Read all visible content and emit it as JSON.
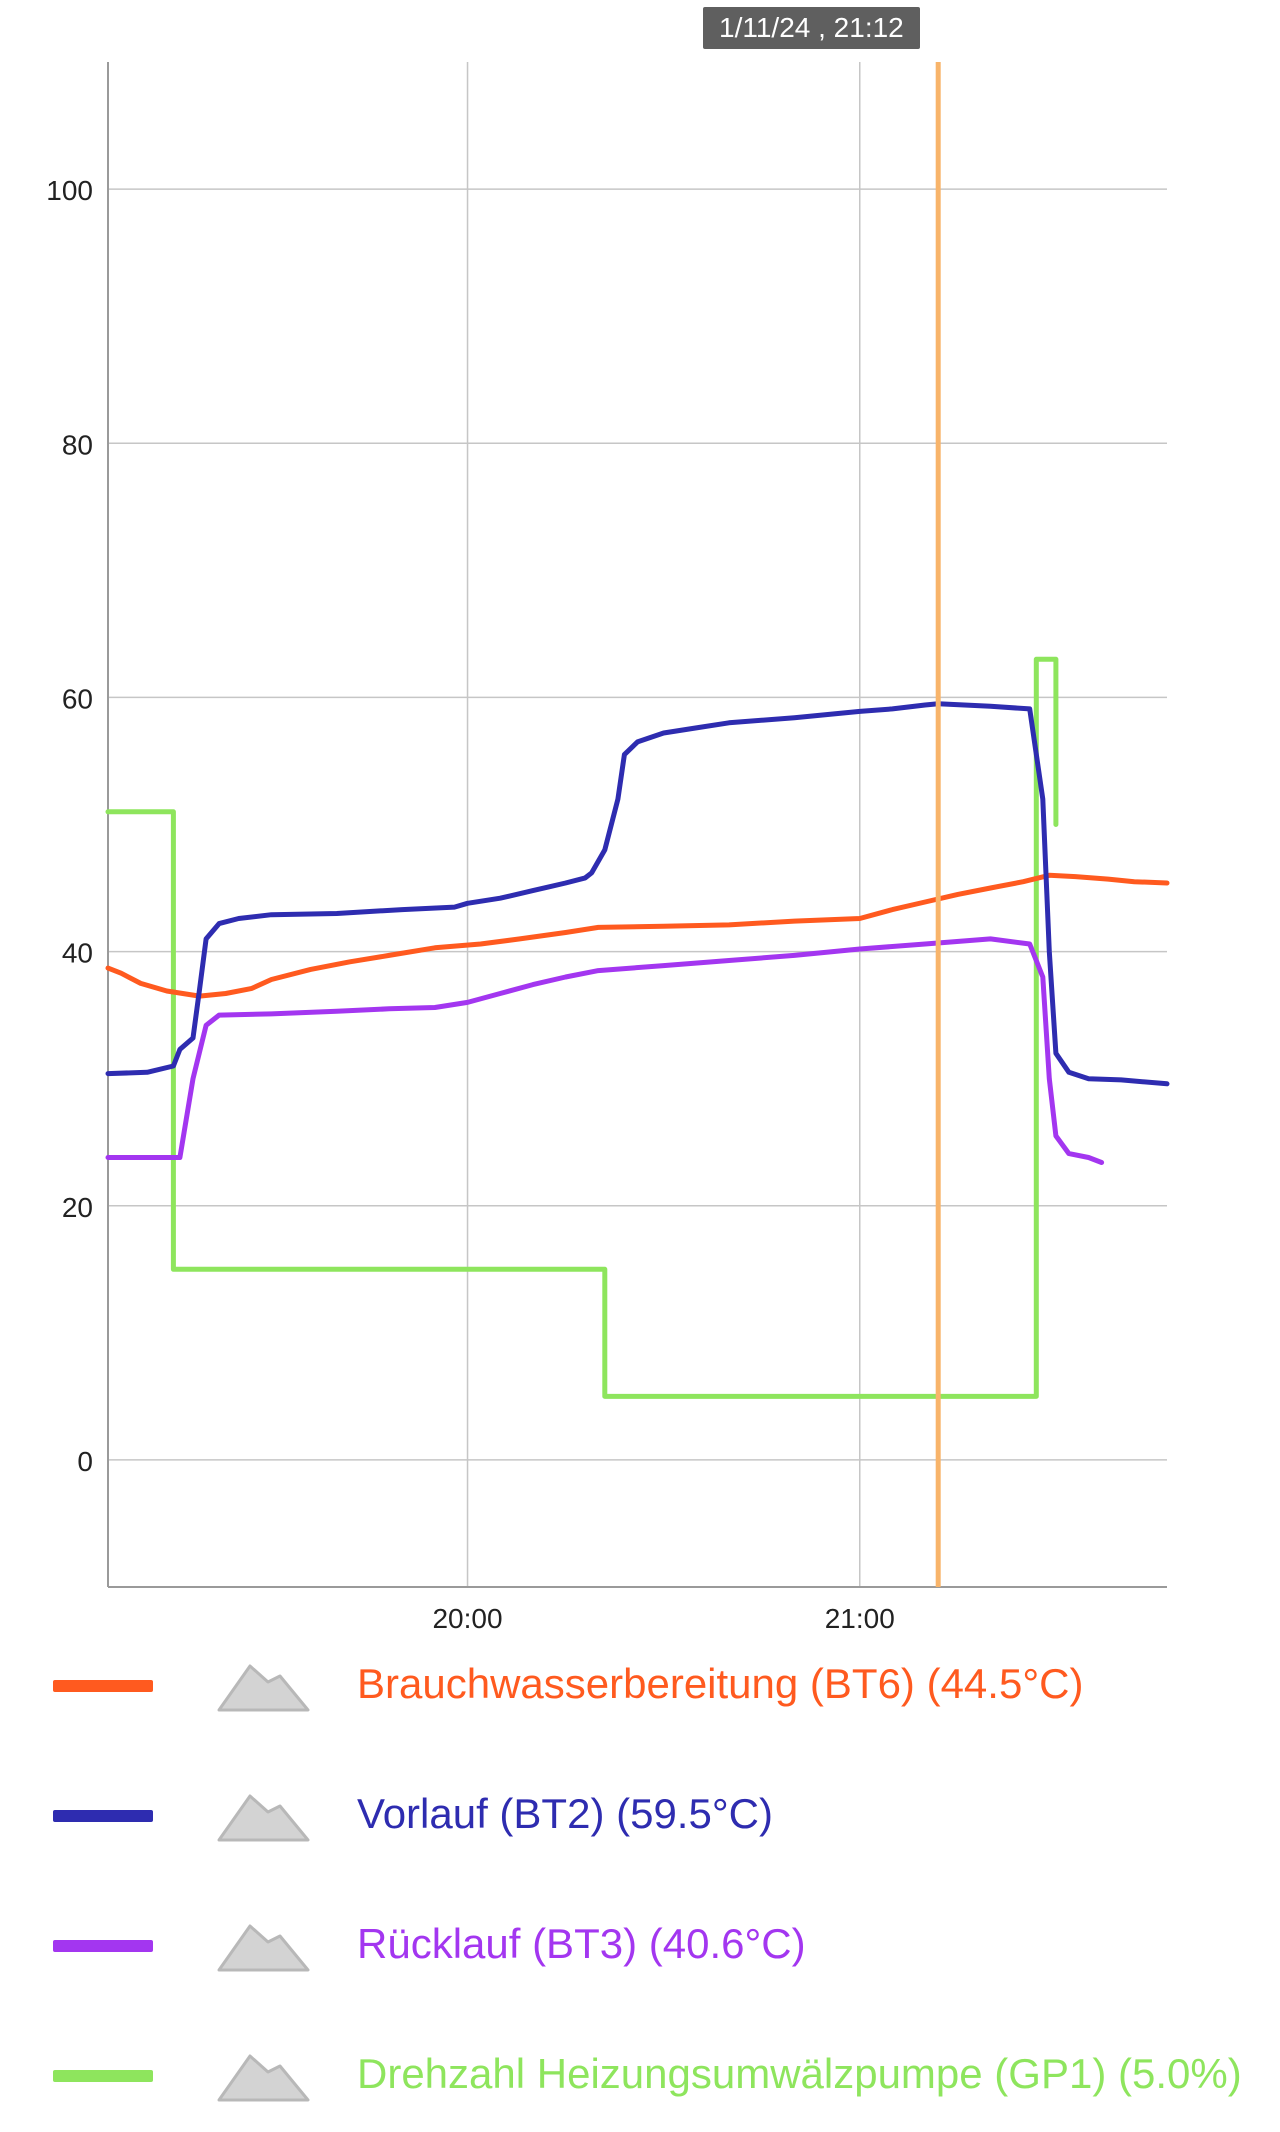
{
  "tooltip": {
    "text": "1/11/24 , 21:12"
  },
  "chart_data": {
    "type": "line",
    "ylim": [
      -10,
      110
    ],
    "yticks": [
      0,
      20,
      40,
      60,
      80,
      100
    ],
    "ytick_labels": [
      "0",
      "20",
      "40",
      "60",
      "80",
      "100"
    ],
    "xlim": [
      "19:05",
      "21:47"
    ],
    "xticks": [
      "20:00",
      "21:00"
    ],
    "xtick_labels": [
      "20:00",
      "21:00"
    ],
    "grid": true,
    "cursor": {
      "x": "21:12",
      "color": "#F8B46A"
    },
    "legend_position": "bottom",
    "series": [
      {
        "name": "Brauchwasserbereitung (BT6) (44.5°C)",
        "color": "#FF5A1F",
        "points": [
          [
            "19:05",
            38.7
          ],
          [
            "19:07",
            38.3
          ],
          [
            "19:10",
            37.5
          ],
          [
            "19:14",
            36.9
          ],
          [
            "19:19",
            36.5
          ],
          [
            "19:23",
            36.7
          ],
          [
            "19:27",
            37.1
          ],
          [
            "19:30",
            37.8
          ],
          [
            "19:36",
            38.6
          ],
          [
            "19:42",
            39.2
          ],
          [
            "19:48",
            39.7
          ],
          [
            "19:55",
            40.3
          ],
          [
            "20:02",
            40.6
          ],
          [
            "20:08",
            41.0
          ],
          [
            "20:15",
            41.5
          ],
          [
            "20:20",
            41.9
          ],
          [
            "20:30",
            42.0
          ],
          [
            "20:40",
            42.1
          ],
          [
            "20:50",
            42.4
          ],
          [
            "21:00",
            42.6
          ],
          [
            "21:05",
            43.3
          ],
          [
            "21:10",
            43.9
          ],
          [
            "21:15",
            44.5
          ],
          [
            "21:20",
            45.0
          ],
          [
            "21:25",
            45.5
          ],
          [
            "21:29",
            46.0
          ],
          [
            "21:33",
            45.9
          ],
          [
            "21:38",
            45.7
          ],
          [
            "21:42",
            45.5
          ],
          [
            "21:47",
            45.4
          ]
        ]
      },
      {
        "name": "Vorlauf (BT2) (59.5°C)",
        "color": "#2E2CB0",
        "points": [
          [
            "19:05",
            30.4
          ],
          [
            "19:11",
            30.5
          ],
          [
            "19:15",
            31.0
          ],
          [
            "19:16",
            32.3
          ],
          [
            "19:18",
            33.2
          ],
          [
            "19:19",
            37.0
          ],
          [
            "19:20",
            41.0
          ],
          [
            "19:22",
            42.2
          ],
          [
            "19:25",
            42.6
          ],
          [
            "19:30",
            42.9
          ],
          [
            "19:40",
            43.0
          ],
          [
            "19:50",
            43.3
          ],
          [
            "19:58",
            43.5
          ],
          [
            "20:00",
            43.8
          ],
          [
            "20:05",
            44.2
          ],
          [
            "20:10",
            44.8
          ],
          [
            "20:15",
            45.4
          ],
          [
            "20:18",
            45.8
          ],
          [
            "20:19",
            46.2
          ],
          [
            "20:21",
            48.0
          ],
          [
            "20:23",
            52.0
          ],
          [
            "20:24",
            55.5
          ],
          [
            "20:26",
            56.5
          ],
          [
            "20:30",
            57.2
          ],
          [
            "20:35",
            57.6
          ],
          [
            "20:40",
            58.0
          ],
          [
            "20:50",
            58.4
          ],
          [
            "21:00",
            58.9
          ],
          [
            "21:05",
            59.1
          ],
          [
            "21:10",
            59.4
          ],
          [
            "21:12",
            59.5
          ],
          [
            "21:20",
            59.3
          ],
          [
            "21:26",
            59.1
          ],
          [
            "21:28",
            52.0
          ],
          [
            "21:29",
            40.0
          ],
          [
            "21:30",
            32.0
          ],
          [
            "21:32",
            30.5
          ],
          [
            "21:35",
            30.0
          ],
          [
            "21:40",
            29.9
          ],
          [
            "21:47",
            29.6
          ]
        ]
      },
      {
        "name": "Rücklauf (BT3) (40.6°C)",
        "color": "#A336F0",
        "points": [
          [
            "19:05",
            23.8
          ],
          [
            "19:16",
            23.8
          ],
          [
            "19:18",
            30.0
          ],
          [
            "19:20",
            34.2
          ],
          [
            "19:22",
            35.0
          ],
          [
            "19:30",
            35.1
          ],
          [
            "19:40",
            35.3
          ],
          [
            "19:48",
            35.5
          ],
          [
            "19:55",
            35.6
          ],
          [
            "20:00",
            36.0
          ],
          [
            "20:05",
            36.7
          ],
          [
            "20:10",
            37.4
          ],
          [
            "20:15",
            38.0
          ],
          [
            "20:20",
            38.5
          ],
          [
            "20:30",
            38.9
          ],
          [
            "20:40",
            39.3
          ],
          [
            "20:50",
            39.7
          ],
          [
            "21:00",
            40.2
          ],
          [
            "21:10",
            40.6
          ],
          [
            "21:20",
            41.0
          ],
          [
            "21:26",
            40.6
          ],
          [
            "21:28",
            38.0
          ],
          [
            "21:29",
            30.0
          ],
          [
            "21:30",
            25.5
          ],
          [
            "21:32",
            24.1
          ],
          [
            "21:35",
            23.8
          ],
          [
            "21:37",
            23.4
          ]
        ]
      },
      {
        "name": "Drehzahl Heizungsumwälzpumpe (GP1) (5.0%)",
        "color": "#8EE55D",
        "step": true,
        "points": [
          [
            "19:05",
            51.0
          ],
          [
            "19:15",
            51.0
          ],
          [
            "19:15",
            15.0
          ],
          [
            "20:21",
            15.0
          ],
          [
            "20:21",
            5.0
          ],
          [
            "21:27",
            5.0
          ],
          [
            "21:27",
            63.0
          ],
          [
            "21:30",
            63.0
          ],
          [
            "21:30",
            50.0
          ]
        ]
      }
    ]
  },
  "legend": {
    "items": [
      {
        "label": "Brauchwasserbereitung (BT6) (44.5°C)",
        "color": "#FF5A1F",
        "icon": "area-chart-icon"
      },
      {
        "label": "Vorlauf (BT2) (59.5°C)",
        "color": "#2E2CB0",
        "icon": "area-chart-icon"
      },
      {
        "label": "Rücklauf (BT3) (40.6°C)",
        "color": "#A336F0",
        "icon": "area-chart-icon"
      },
      {
        "label": "Drehzahl Heizungsumwälzpumpe (GP1) (5.0%)",
        "color": "#8EE55D",
        "icon": "area-chart-icon"
      }
    ]
  }
}
